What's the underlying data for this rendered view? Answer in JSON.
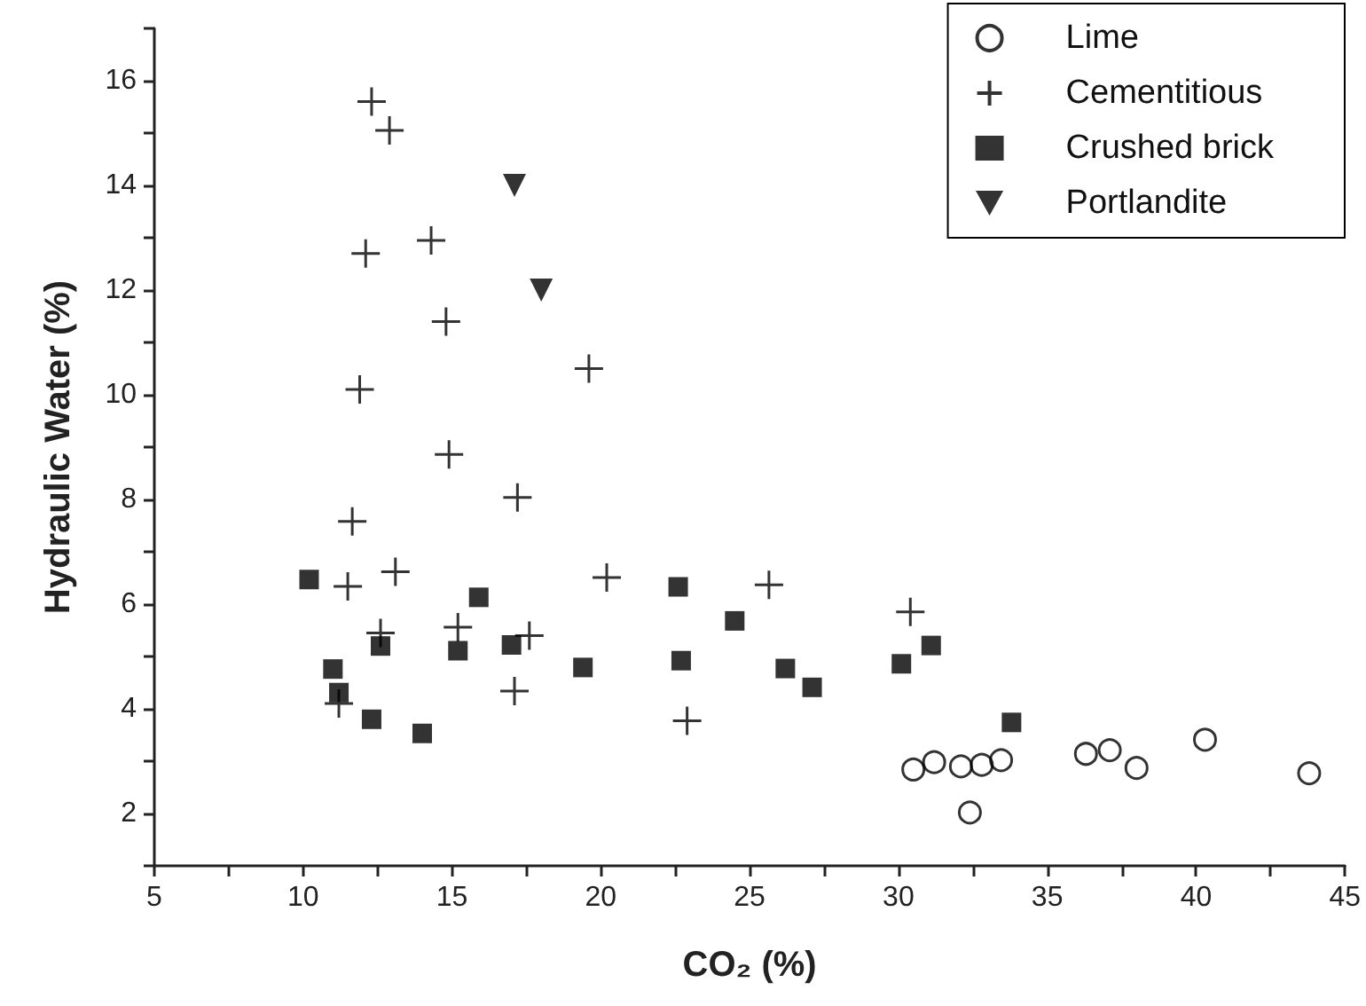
{
  "chart_data": {
    "type": "scatter",
    "xlabel": "CO₂ (%)",
    "ylabel": "Hydraulic Water (%)",
    "xlim": [
      5,
      45
    ],
    "xticks": [
      5,
      {
        "value": 7.5,
        "label": null
      },
      10,
      {
        "value": 12.5,
        "label": null
      },
      15,
      {
        "value": 17.5,
        "label": null
      },
      20,
      {
        "value": 22.5,
        "label": null
      },
      25,
      {
        "value": 27.5,
        "label": null
      },
      30,
      {
        "value": 32.5,
        "label": null
      },
      35,
      {
        "value": 37.5,
        "label": null
      },
      40,
      {
        "value": 42.5,
        "label": null
      },
      45
    ],
    "ylim": [
      1,
      17
    ],
    "yticks": [
      {
        "value": 1,
        "label": null
      },
      2,
      {
        "value": 3,
        "label": null
      },
      4,
      {
        "value": 5,
        "label": null
      },
      6,
      {
        "value": 7,
        "label": null
      },
      8,
      {
        "value": 9,
        "label": null
      },
      10,
      {
        "value": 11,
        "label": null
      },
      12,
      {
        "value": 13,
        "label": null
      },
      14,
      {
        "value": 15,
        "label": null
      },
      16,
      {
        "value": 17,
        "label": null
      }
    ],
    "grid": false,
    "legend": "top right",
    "series": [
      {
        "name": "Lime",
        "color": "#000000",
        "marker": "circle",
        "x": [
          30.5,
          31.2,
          32.1,
          32.8,
          33.45,
          32.4,
          36.3,
          37.1,
          38.0,
          40.3,
          43.8
        ],
        "values": [
          2.84,
          2.98,
          2.9,
          2.93,
          3.02,
          2.02,
          3.14,
          3.21,
          2.87,
          3.41,
          2.77
        ]
      },
      {
        "name": "Cementitious",
        "color": "#000000",
        "marker": "cross",
        "x": [
          12.3,
          12.9,
          14.3,
          12.1,
          14.8,
          19.6,
          11.9,
          14.9,
          17.2,
          11.65,
          13.1,
          11.5,
          20.2,
          12.6,
          15.2,
          17.6,
          17.1,
          11.2,
          25.65,
          30.4,
          22.9
        ],
        "values": [
          15.6,
          15.05,
          12.95,
          12.7,
          11.4,
          10.5,
          10.1,
          8.86,
          8.04,
          7.58,
          6.62,
          6.34,
          6.51,
          5.45,
          5.56,
          5.4,
          4.34,
          4.1,
          6.37,
          5.85,
          3.77
        ]
      },
      {
        "name": "Crushed brick",
        "color": "#000000",
        "marker": "square",
        "x": [
          10.2,
          15.9,
          12.6,
          15.2,
          17.0,
          11.0,
          11.2,
          12.3,
          14.0,
          19.4,
          22.6,
          24.5,
          22.7,
          26.2,
          27.1,
          30.1,
          31.1,
          33.8
        ],
        "values": [
          6.47,
          6.13,
          5.2,
          5.11,
          5.22,
          4.76,
          4.31,
          3.8,
          3.53,
          4.79,
          6.33,
          5.68,
          4.92,
          4.77,
          4.41,
          4.86,
          5.21,
          3.74
        ]
      },
      {
        "name": "Portlandite",
        "color": "#000000",
        "marker": "triangle",
        "x": [
          17.1,
          18.0
        ],
        "values": [
          14.0,
          12.0
        ]
      }
    ]
  }
}
